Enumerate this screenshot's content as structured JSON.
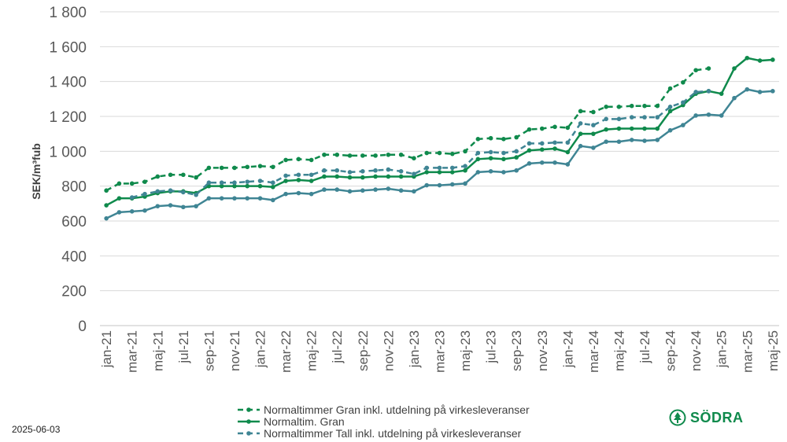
{
  "chart_data": {
    "type": "line",
    "ylabel": "SEK/m³fub",
    "ylim": [
      0,
      1800
    ],
    "yticks": [
      0,
      200,
      400,
      600,
      800,
      1000,
      1200,
      1400,
      1600,
      1800
    ],
    "ytick_labels": [
      "0",
      "200",
      "400",
      "600",
      "800",
      "1 000",
      "1 200",
      "1 400",
      "1 600",
      "1 800"
    ],
    "grid": true,
    "legend_position": "bottom",
    "categories": [
      "jan-21",
      "feb-21",
      "mar-21",
      "apr-21",
      "maj-21",
      "jun-21",
      "jul-21",
      "aug-21",
      "sep-21",
      "okt-21",
      "nov-21",
      "dec-21",
      "jan-22",
      "feb-22",
      "mar-22",
      "apr-22",
      "maj-22",
      "jun-22",
      "jul-22",
      "aug-22",
      "sep-22",
      "okt-22",
      "nov-22",
      "dec-22",
      "jan-23",
      "feb-23",
      "mar-23",
      "apr-23",
      "maj-23",
      "jun-23",
      "jul-23",
      "aug-23",
      "sep-23",
      "okt-23",
      "nov-23",
      "dec-23",
      "jan-24",
      "feb-24",
      "mar-24",
      "apr-24",
      "maj-24",
      "jun-24",
      "jul-24",
      "aug-24",
      "sep-24",
      "okt-24",
      "nov-24",
      "dec-24",
      "jan-25",
      "feb-25",
      "mar-25",
      "apr-25",
      "maj-25"
    ],
    "tick_labels": [
      "jan-21",
      "mar-21",
      "maj-21",
      "jul-21",
      "sep-21",
      "nov-21",
      "jan-22",
      "mar-22",
      "maj-22",
      "jul-22",
      "sep-22",
      "nov-22",
      "jan-23",
      "mar-23",
      "maj-23",
      "jul-23",
      "sep-23",
      "nov-23",
      "jan-24",
      "mar-24",
      "maj-24",
      "jul-24",
      "sep-24",
      "nov-24",
      "jan-25",
      "mar-25",
      "maj-25"
    ],
    "series": [
      {
        "name": "Normaltimmer Gran inkl. utdelning på virkesleveranser",
        "color": "#0f8a4c",
        "style": "dashed",
        "values": [
          775,
          815,
          815,
          825,
          855,
          865,
          865,
          850,
          905,
          905,
          905,
          910,
          915,
          910,
          950,
          955,
          950,
          980,
          980,
          975,
          975,
          975,
          980,
          980,
          960,
          990,
          990,
          985,
          1000,
          1070,
          1075,
          1070,
          1080,
          1125,
          1130,
          1140,
          1135,
          1230,
          1225,
          1255,
          1255,
          1260,
          1260,
          1260,
          1360,
          1395,
          1465,
          1475,
          null,
          null,
          null,
          null,
          null
        ]
      },
      {
        "name": "Normaltim. Gran",
        "color": "#0f8a4c",
        "style": "solid",
        "values": [
          690,
          730,
          730,
          740,
          760,
          770,
          770,
          760,
          800,
          800,
          800,
          800,
          800,
          795,
          830,
          835,
          830,
          855,
          855,
          850,
          850,
          855,
          855,
          855,
          855,
          880,
          880,
          880,
          890,
          955,
          960,
          955,
          965,
          1005,
          1010,
          1015,
          995,
          1100,
          1100,
          1125,
          1130,
          1130,
          1130,
          1130,
          1230,
          1265,
          1330,
          1345,
          1330,
          1475,
          1535,
          1520,
          1525
        ]
      },
      {
        "name": "Normaltimmer Tall inkl. utdelning på virkesleveranser",
        "color": "#3f8594",
        "style": "dashed",
        "values": [
          null,
          null,
          735,
          755,
          770,
          775,
          765,
          750,
          820,
          820,
          820,
          825,
          830,
          820,
          860,
          865,
          865,
          890,
          890,
          880,
          885,
          890,
          895,
          885,
          870,
          905,
          905,
          905,
          915,
          990,
          995,
          990,
          1000,
          1045,
          1045,
          1050,
          1050,
          1160,
          1150,
          1185,
          1185,
          1195,
          1195,
          1195,
          1255,
          1280,
          1340,
          1345,
          null,
          null,
          null,
          null,
          null
        ]
      },
      {
        "name": "",
        "color": "#3f8594",
        "style": "solid",
        "values": [
          615,
          650,
          655,
          660,
          685,
          690,
          680,
          685,
          730,
          730,
          730,
          730,
          730,
          720,
          755,
          760,
          755,
          780,
          780,
          770,
          775,
          780,
          785,
          775,
          770,
          805,
          805,
          810,
          815,
          880,
          885,
          880,
          890,
          930,
          935,
          935,
          925,
          1030,
          1020,
          1055,
          1055,
          1065,
          1060,
          1065,
          1120,
          1150,
          1205,
          1210,
          1205,
          1305,
          1355,
          1340,
          1345
        ]
      }
    ]
  },
  "footer": {
    "date": "2025-06-03",
    "brand": "SÖDRA"
  }
}
